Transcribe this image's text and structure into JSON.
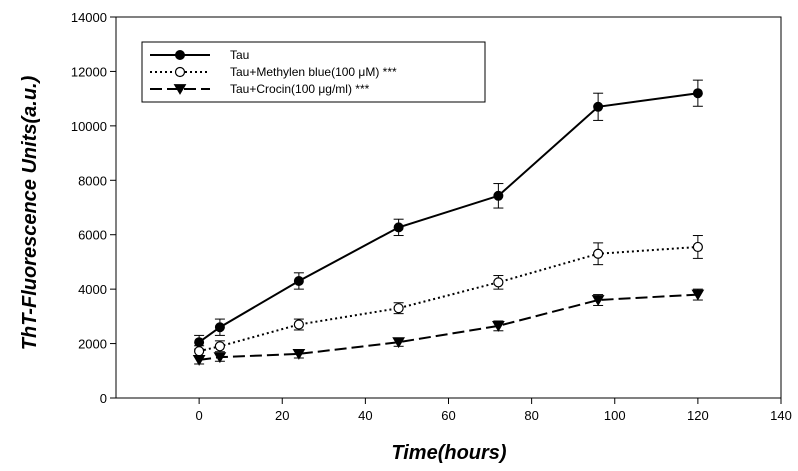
{
  "chart_data": {
    "type": "line",
    "title": "",
    "xlabel": "Time(hours)",
    "ylabel": "ThT-Fluorescence Units(a.u.)",
    "xlim": [
      -20,
      140
    ],
    "ylim": [
      0,
      14000
    ],
    "xticks": [
      0,
      20,
      40,
      60,
      80,
      100,
      120,
      140
    ],
    "yticks": [
      0,
      2000,
      4000,
      6000,
      8000,
      10000,
      12000,
      14000
    ],
    "grid": false,
    "legend_position": "top-left",
    "series": [
      {
        "name": "Tau",
        "marker": "filled-circle",
        "line_style": "solid",
        "color": "#000000",
        "x": [
          0,
          5,
          24,
          48,
          72,
          96,
          120
        ],
        "y": [
          2050,
          2600,
          4300,
          6270,
          7430,
          10700,
          11200
        ],
        "error": [
          250,
          300,
          300,
          300,
          450,
          500,
          480
        ]
      },
      {
        "name": "Tau+Methylen blue(100 μM) ***",
        "marker": "open-circle",
        "line_style": "dotted",
        "color": "#000000",
        "x": [
          0,
          5,
          24,
          48,
          72,
          96,
          120
        ],
        "y": [
          1720,
          1900,
          2700,
          3300,
          4250,
          5300,
          5550
        ],
        "error": [
          200,
          200,
          200,
          200,
          250,
          400,
          420
        ]
      },
      {
        "name": "Tau+Crocin(100 μg/ml) ***",
        "marker": "filled-triangle-down",
        "line_style": "dashed",
        "color": "#000000",
        "x": [
          0,
          5,
          24,
          48,
          72,
          96,
          120
        ],
        "y": [
          1400,
          1500,
          1620,
          2050,
          2650,
          3600,
          3800
        ],
        "error": [
          150,
          150,
          150,
          150,
          180,
          200,
          200
        ]
      }
    ]
  }
}
